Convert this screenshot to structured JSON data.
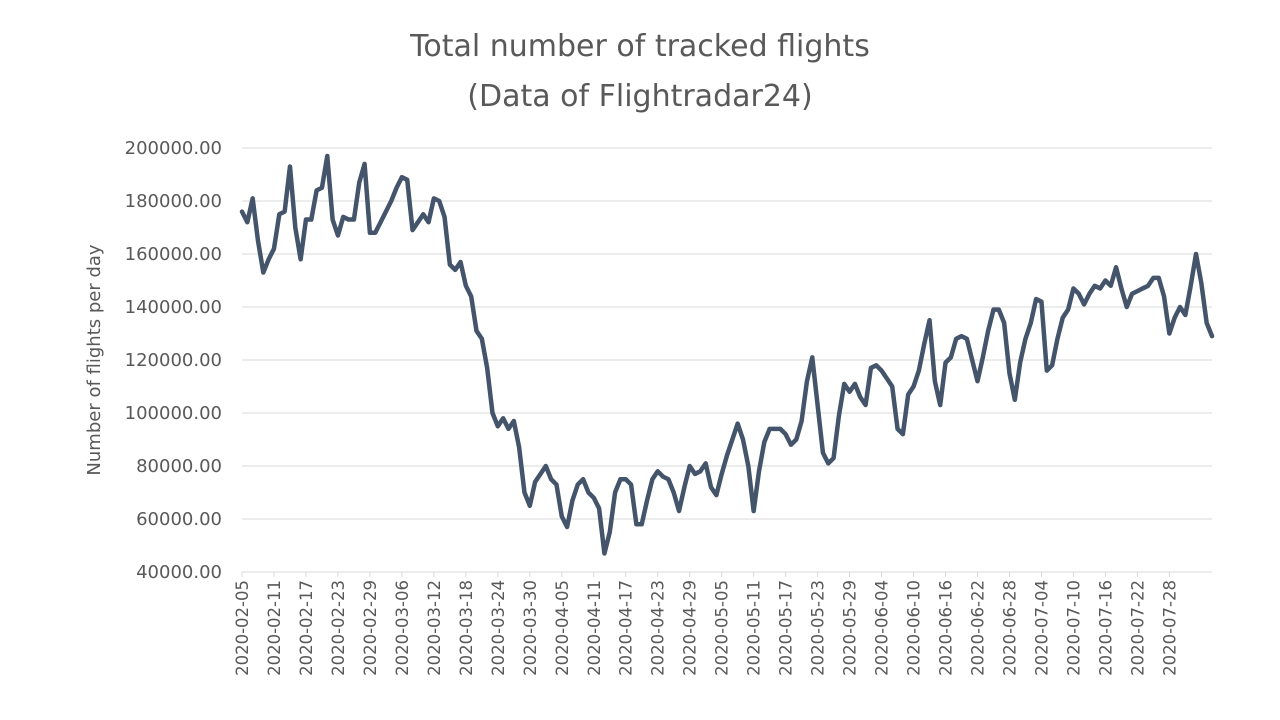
{
  "chart_data": {
    "type": "line",
    "title": "Total number of tracked flights",
    "subtitle": "(Data of Flightradar24)",
    "xlabel": "",
    "ylabel": "Number  of flights per day",
    "ylim": [
      40000,
      200000
    ],
    "yticks": [
      "40000.00",
      "60000.00",
      "80000.00",
      "100000.00",
      "120000.00",
      "140000.00",
      "160000.00",
      "180000.00",
      "200000.00"
    ],
    "grid": true,
    "legend": "none",
    "start_date": "2020-02-05",
    "x_tick_labels": [
      "2020-02-05",
      "2020-02-11",
      "2020-02-17",
      "2020-02-23",
      "2020-02-29",
      "2020-03-06",
      "2020-03-12",
      "2020-03-18",
      "2020-03-24",
      "2020-03-30",
      "2020-04-05",
      "2020-04-11",
      "2020-04-17",
      "2020-04-23",
      "2020-04-29",
      "2020-05-05",
      "2020-05-11",
      "2020-05-17",
      "2020-05-23",
      "2020-05-29",
      "2020-06-04",
      "2020-06-10",
      "2020-06-16",
      "2020-06-22",
      "2020-06-28",
      "2020-07-04",
      "2020-07-10",
      "2020-07-16",
      "2020-07-22",
      "2020-07-28"
    ],
    "series": [
      {
        "name": "",
        "color": "#44546a",
        "values": [
          176000,
          172000,
          181000,
          165000,
          153000,
          158000,
          162000,
          175000,
          176000,
          193000,
          170000,
          158000,
          173000,
          173000,
          184000,
          185000,
          197000,
          173000,
          167000,
          174000,
          173000,
          173000,
          187000,
          194000,
          168000,
          168000,
          172000,
          176000,
          180000,
          185000,
          189000,
          188000,
          169000,
          172000,
          175000,
          172000,
          181000,
          180000,
          174000,
          156000,
          154000,
          157000,
          148000,
          144000,
          131000,
          128000,
          117000,
          100000,
          95000,
          98000,
          94000,
          97000,
          87000,
          70000,
          65000,
          74000,
          77000,
          80000,
          75000,
          73000,
          61000,
          57000,
          67000,
          73000,
          75000,
          70000,
          68000,
          64000,
          47000,
          55000,
          70000,
          75000,
          75000,
          73000,
          58000,
          58000,
          67000,
          75000,
          78000,
          76000,
          75000,
          70000,
          63000,
          72000,
          80000,
          77000,
          78000,
          81000,
          72000,
          69000,
          77000,
          84000,
          90000,
          96000,
          90000,
          80000,
          63000,
          78000,
          89000,
          94000,
          94000,
          94000,
          92000,
          88000,
          90000,
          97000,
          112000,
          121000,
          103000,
          85000,
          81000,
          83000,
          99000,
          111000,
          108000,
          111000,
          106000,
          103000,
          117000,
          118000,
          116000,
          113000,
          110000,
          94000,
          92000,
          107000,
          110000,
          116000,
          126000,
          135000,
          112000,
          103000,
          119000,
          121000,
          128000,
          129000,
          128000,
          120000,
          112000,
          121000,
          131000,
          139000,
          139000,
          134000,
          115000,
          105000,
          119000,
          128000,
          134000,
          143000,
          142000,
          116000,
          118000,
          128000,
          136000,
          139000,
          147000,
          145000,
          141000,
          145000,
          148000,
          147000,
          150000,
          148000,
          155000,
          147000,
          140000,
          145000,
          146000,
          147000,
          148000,
          151000,
          151000,
          144000,
          130000,
          136000,
          140000,
          137000,
          148000,
          160000,
          149000,
          134000,
          129000
        ]
      }
    ]
  }
}
